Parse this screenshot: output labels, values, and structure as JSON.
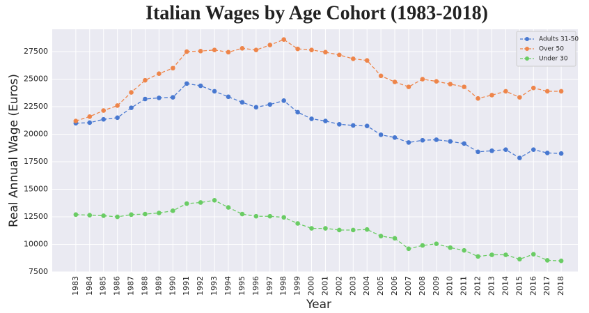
{
  "chart_data": {
    "type": "line",
    "title": "Italian Wages by Age Cohort (1983-2018)",
    "x_label": "Year",
    "y_label": "Real Annual Wage (Euros)",
    "x": [
      1983,
      1984,
      1985,
      1986,
      1987,
      1988,
      1989,
      1990,
      1991,
      1992,
      1993,
      1994,
      1995,
      1996,
      1997,
      1998,
      1999,
      2000,
      2001,
      2002,
      2003,
      2004,
      2005,
      2006,
      2007,
      2008,
      2009,
      2010,
      2011,
      2012,
      2013,
      2014,
      2015,
      2016,
      2017,
      2018
    ],
    "series": [
      {
        "name": "Adults 31-50",
        "color": "#4878d0",
        "values": [
          21000,
          21050,
          21350,
          21500,
          22400,
          23200,
          23300,
          23350,
          24600,
          24400,
          23900,
          23400,
          22900,
          22450,
          22700,
          23050,
          22000,
          21400,
          21200,
          20900,
          20800,
          20750,
          19950,
          19700,
          19250,
          19450,
          19500,
          19350,
          19150,
          18400,
          18500,
          18600,
          17850,
          18600,
          18300,
          18250
        ]
      },
      {
        "name": "Over 50",
        "color": "#ee854a",
        "values": [
          21200,
          21600,
          22150,
          22600,
          23800,
          24900,
          25500,
          26000,
          27500,
          27550,
          27650,
          27450,
          27800,
          27650,
          28100,
          28600,
          27750,
          27650,
          27450,
          27200,
          26850,
          26700,
          25300,
          24750,
          24300,
          25000,
          24800,
          24550,
          24300,
          23250,
          23550,
          23900,
          23350,
          24200,
          23900,
          23900
        ]
      },
      {
        "name": "Under 30",
        "color": "#6acc64",
        "values": [
          12700,
          12650,
          12600,
          12500,
          12700,
          12750,
          12850,
          13050,
          13700,
          13800,
          14000,
          13350,
          12750,
          12550,
          12550,
          12450,
          11900,
          11450,
          11450,
          11300,
          11300,
          11350,
          10750,
          10550,
          9600,
          9900,
          10050,
          9700,
          9450,
          8900,
          9050,
          9050,
          8650,
          9100,
          8550,
          8500
        ]
      }
    ],
    "xlim": [
      1981.3,
      2019.2
    ],
    "xticks": [
      1983,
      1984,
      1985,
      1986,
      1987,
      1988,
      1989,
      1990,
      1991,
      1992,
      1993,
      1994,
      1995,
      1996,
      1997,
      1998,
      1999,
      2000,
      2001,
      2002,
      2003,
      2004,
      2005,
      2006,
      2007,
      2008,
      2009,
      2010,
      2011,
      2012,
      2013,
      2014,
      2015,
      2016,
      2017,
      2018
    ],
    "ylim": [
      7500,
      29530
    ],
    "yticks": [
      7500,
      10000,
      12500,
      15000,
      17500,
      20000,
      22500,
      25000,
      27500
    ],
    "grid": true,
    "legend": "upper right",
    "line_style": "dashed",
    "marker": "circle"
  }
}
